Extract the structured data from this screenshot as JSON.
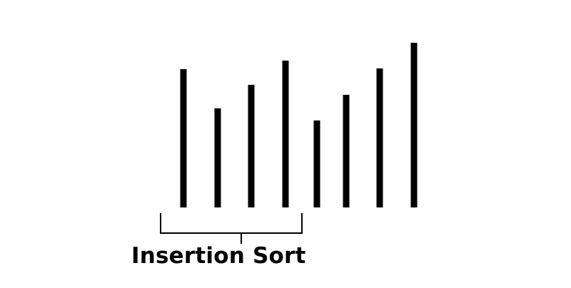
{
  "caption": "Insertion Sort",
  "bars": {
    "color": "#000000",
    "heights": [
      194,
      139,
      172,
      206,
      122,
      158,
      195,
      231
    ],
    "bracketed_count": 4
  },
  "bracket_color": "#000000",
  "background_color": "#ffffff"
}
